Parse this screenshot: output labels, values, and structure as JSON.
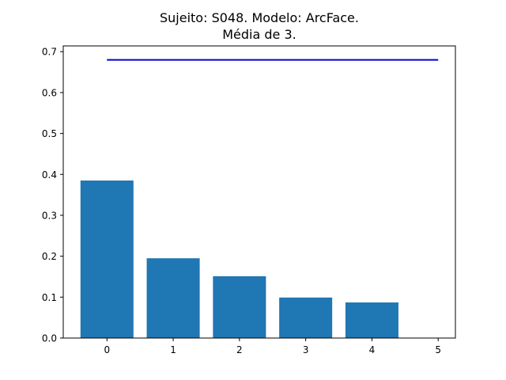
{
  "chart_data": {
    "type": "bar",
    "title_line1": "Sujeito: S048. Modelo: ArcFace.",
    "title_line2": "Média de 3.",
    "xlabel": "",
    "ylabel": "",
    "categories": [
      0,
      1,
      2,
      3,
      4
    ],
    "values": [
      0.385,
      0.195,
      0.151,
      0.099,
      0.087
    ],
    "bar_color": "#1f77b4",
    "xlim": [
      -0.66,
      5.26
    ],
    "ylim": [
      0.0,
      0.714
    ],
    "xticks": [
      0,
      1,
      2,
      3,
      4,
      5
    ],
    "yticks": [
      0.0,
      0.1,
      0.2,
      0.3,
      0.4,
      0.5,
      0.6,
      0.7
    ],
    "reference_line": {
      "color": "#0000cc",
      "y": 0.68,
      "x": [
        0,
        5
      ]
    },
    "grid": false,
    "legend": "none"
  }
}
